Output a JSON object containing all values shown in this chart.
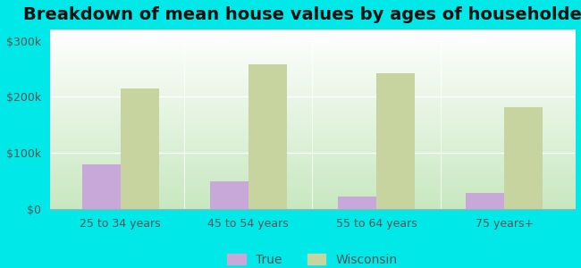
{
  "title": "Breakdown of mean house values by ages of householders",
  "categories": [
    "25 to 34 years",
    "45 to 54 years",
    "55 to 64 years",
    "75 years+"
  ],
  "true_values": [
    80000,
    50000,
    22000,
    28000
  ],
  "wisconsin_values": [
    215000,
    258000,
    242000,
    182000
  ],
  "true_color": "#c8a8d8",
  "wisconsin_color": "#c8d4a0",
  "background_color": "#00e8e8",
  "plot_bg_top": "#ffffff",
  "plot_bg_bottom": "#c8e8c0",
  "ylim": [
    0,
    320000
  ],
  "yticks": [
    0,
    100000,
    200000,
    300000
  ],
  "ytick_labels": [
    "$0",
    "$100k",
    "$200k",
    "$300k"
  ],
  "legend_labels": [
    "True",
    "Wisconsin"
  ],
  "bar_width": 0.3,
  "title_fontsize": 14,
  "tick_fontsize": 9,
  "legend_fontsize": 10
}
